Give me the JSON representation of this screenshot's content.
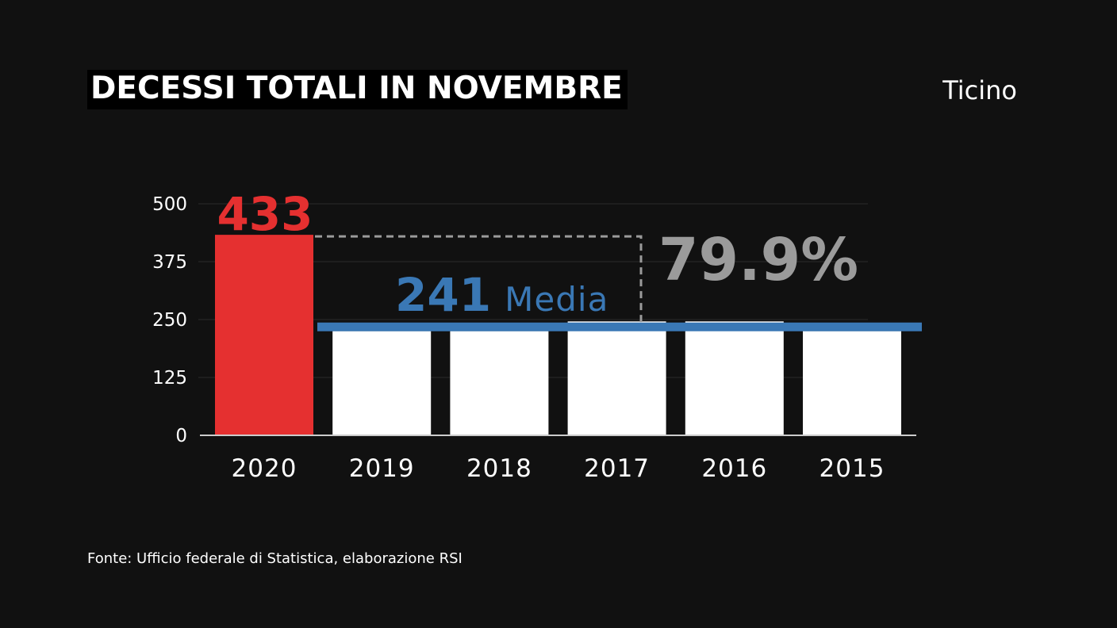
{
  "header": {
    "title": "DECESSI TOTALI IN NOVEMBRE",
    "region": "Ticino"
  },
  "footer": {
    "source": "Fonte: Ufficio federale di Statistica, elaborazione RSI"
  },
  "colors": {
    "background": "#111111",
    "highlight_bar": "#e53030",
    "bar": "#ffffff",
    "average_line": "#3a78b5",
    "percent_label": "#9b9b9b",
    "grid": "#2a2a2a",
    "axis": "#cccccc"
  },
  "chart_data": {
    "type": "bar",
    "title": "DECESSI TOTALI IN NOVEMBRE",
    "categories": [
      "2020",
      "2019",
      "2018",
      "2017",
      "2016",
      "2015"
    ],
    "values": [
      433,
      225,
      225,
      246,
      246,
      225
    ],
    "ylim": [
      0,
      500
    ],
    "yticks": [
      0,
      125,
      250,
      375,
      500
    ],
    "grid": true,
    "highlight_index": 0,
    "highlight_label": "433",
    "average": {
      "value": 241,
      "value_label": "241",
      "label": "Media"
    },
    "difference": {
      "label": "79.9%"
    }
  }
}
